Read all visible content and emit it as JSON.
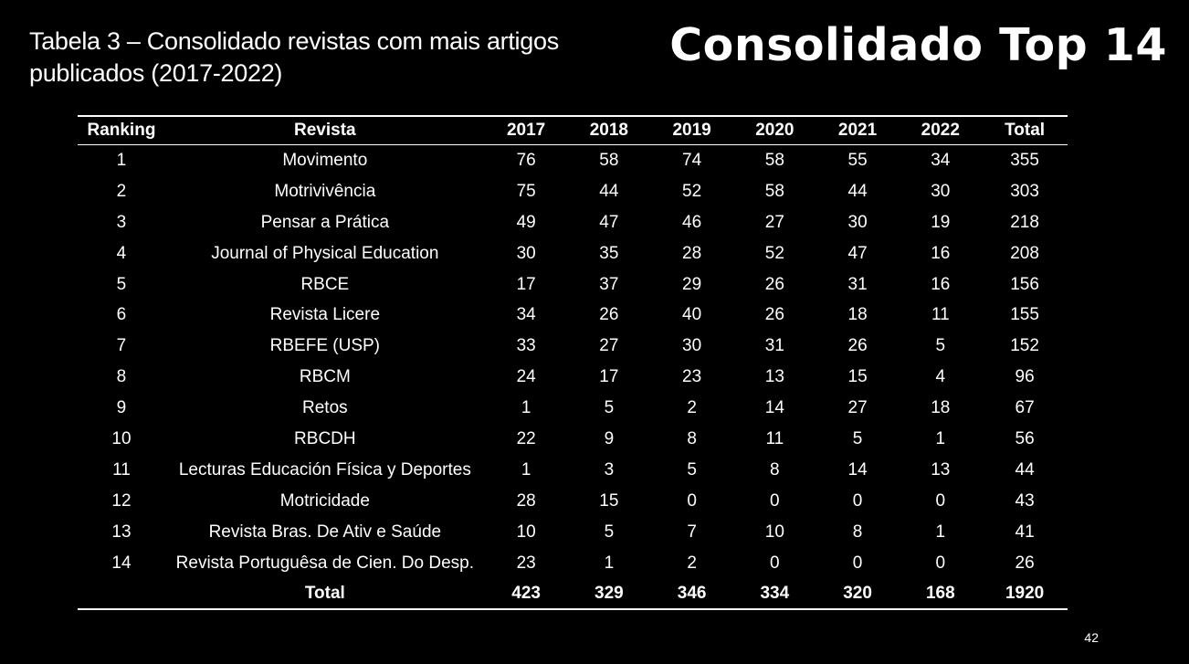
{
  "caption": {
    "line1": "Tabela 3 – Consolidado revistas com mais artigos",
    "line2": "publicados (2017-2022)"
  },
  "headline": "Consolidado Top 14",
  "table": {
    "headers": [
      "Ranking",
      "Revista",
      "2017",
      "2018",
      "2019",
      "2020",
      "2021",
      "2022",
      "Total"
    ],
    "rows": [
      [
        "1",
        "Movimento",
        "76",
        "58",
        "74",
        "58",
        "55",
        "34",
        "355"
      ],
      [
        "2",
        "Motrivivência",
        "75",
        "44",
        "52",
        "58",
        "44",
        "30",
        "303"
      ],
      [
        "3",
        "Pensar a Prática",
        "49",
        "47",
        "46",
        "27",
        "30",
        "19",
        "218"
      ],
      [
        "4",
        "Journal of Physical Education",
        "30",
        "35",
        "28",
        "52",
        "47",
        "16",
        "208"
      ],
      [
        "5",
        "RBCE",
        "17",
        "37",
        "29",
        "26",
        "31",
        "16",
        "156"
      ],
      [
        "6",
        "Revista Licere",
        "34",
        "26",
        "40",
        "26",
        "18",
        "11",
        "155"
      ],
      [
        "7",
        "RBEFE (USP)",
        "33",
        "27",
        "30",
        "31",
        "26",
        "5",
        "152"
      ],
      [
        "8",
        "RBCM",
        "24",
        "17",
        "23",
        "13",
        "15",
        "4",
        "96"
      ],
      [
        "9",
        "Retos",
        "1",
        "5",
        "2",
        "14",
        "27",
        "18",
        "67"
      ],
      [
        "10",
        "RBCDH",
        "22",
        "9",
        "8",
        "11",
        "5",
        "1",
        "56"
      ],
      [
        "11",
        "Lecturas Educación Física y Deportes",
        "1",
        "3",
        "5",
        "8",
        "14",
        "13",
        "44"
      ],
      [
        "12",
        "Motricidade",
        "28",
        "15",
        "0",
        "0",
        "0",
        "0",
        "43"
      ],
      [
        "13",
        "Revista Bras. De Ativ e Saúde",
        "10",
        "5",
        "7",
        "10",
        "8",
        "1",
        "41"
      ],
      [
        "14",
        "Revista Portuguêsa de Cien. Do Desp.",
        "23",
        "1",
        "2",
        "0",
        "0",
        "0",
        "26"
      ]
    ],
    "total_row": [
      "",
      "Total",
      "423",
      "329",
      "346",
      "334",
      "320",
      "168",
      "1920"
    ]
  },
  "page_number": "42"
}
